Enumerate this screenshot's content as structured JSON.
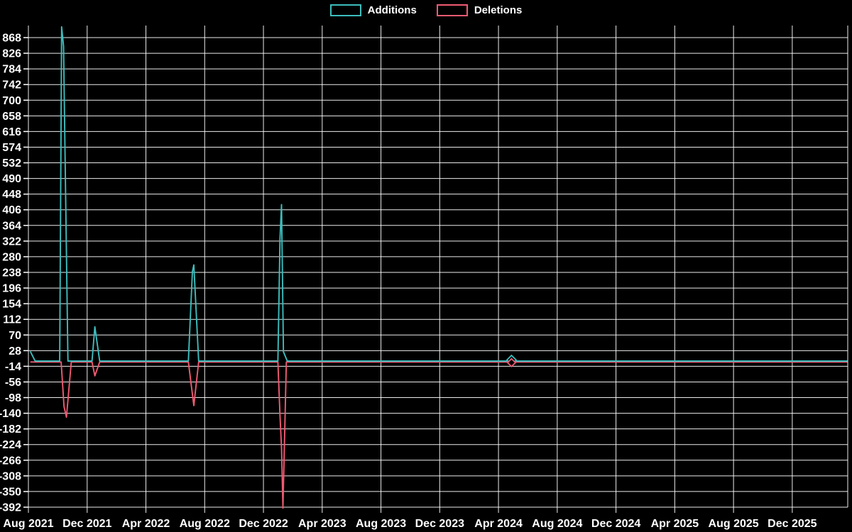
{
  "page": {
    "background": "#000000"
  },
  "legend": {
    "items": [
      {
        "label": "Additions",
        "color": "#3dbdbd"
      },
      {
        "label": "Deletions",
        "color": "#ef5b73"
      }
    ]
  },
  "chart_data": {
    "type": "line",
    "title": "",
    "legend_position": "top-center",
    "grid": true,
    "colors": {
      "background": "#000000",
      "grid": "#ffffff",
      "text": "#ffffff",
      "additions": "#3dbdbd",
      "deletions": "#ef5b73"
    },
    "y_axis": {
      "min": -392,
      "max": 868,
      "step": 42
    },
    "x_ticks": [
      "Aug 2021",
      "Dec 2021",
      "Apr 2022",
      "Aug 2022",
      "Dec 2022",
      "Apr 2023",
      "Aug 2023",
      "Dec 2023",
      "Apr 2024",
      "Aug 2024",
      "Dec 2024",
      "Apr 2025",
      "Aug 2025",
      "Dec 2025"
    ],
    "x_tick_interval_months": 4,
    "x_start_month": "2021-08-01",
    "series": [
      {
        "name": "Additions",
        "color": "#3dbdbd",
        "points": [
          [
            "2021-08-05",
            26
          ],
          [
            "2021-08-15",
            0
          ],
          [
            "2021-10-05",
            0
          ],
          [
            "2021-10-09",
            897
          ],
          [
            "2021-10-13",
            845
          ],
          [
            "2021-10-22",
            0
          ],
          [
            "2021-12-11",
            0
          ],
          [
            "2021-12-17",
            92
          ],
          [
            "2021-12-27",
            0
          ],
          [
            "2022-06-28",
            0
          ],
          [
            "2022-07-06",
            240
          ],
          [
            "2022-07-09",
            258
          ],
          [
            "2022-07-19",
            0
          ],
          [
            "2022-12-31",
            0
          ],
          [
            "2023-01-05",
            330
          ],
          [
            "2023-01-08",
            420
          ],
          [
            "2023-01-12",
            25
          ],
          [
            "2023-01-20",
            0
          ],
          [
            "2026-03-24",
            0
          ]
        ]
      },
      {
        "name": "Deletions",
        "color": "#ef5b73",
        "points": [
          [
            "2021-08-05",
            0
          ],
          [
            "2021-10-08",
            0
          ],
          [
            "2021-10-14",
            -120
          ],
          [
            "2021-10-19",
            -148
          ],
          [
            "2021-10-29",
            0
          ],
          [
            "2021-12-11",
            0
          ],
          [
            "2021-12-17",
            -37
          ],
          [
            "2021-12-27",
            0
          ],
          [
            "2022-06-28",
            0
          ],
          [
            "2022-07-09",
            -117
          ],
          [
            "2022-07-19",
            0
          ],
          [
            "2022-12-31",
            0
          ],
          [
            "2023-01-05",
            -145
          ],
          [
            "2023-01-08",
            -230
          ],
          [
            "2023-01-11",
            -392
          ],
          [
            "2023-01-18",
            0
          ],
          [
            "2026-03-24",
            0
          ]
        ]
      }
    ],
    "marker_point": {
      "date": "2024-04-28",
      "additions": 0,
      "deletions": 0,
      "shape": "diamond"
    }
  }
}
